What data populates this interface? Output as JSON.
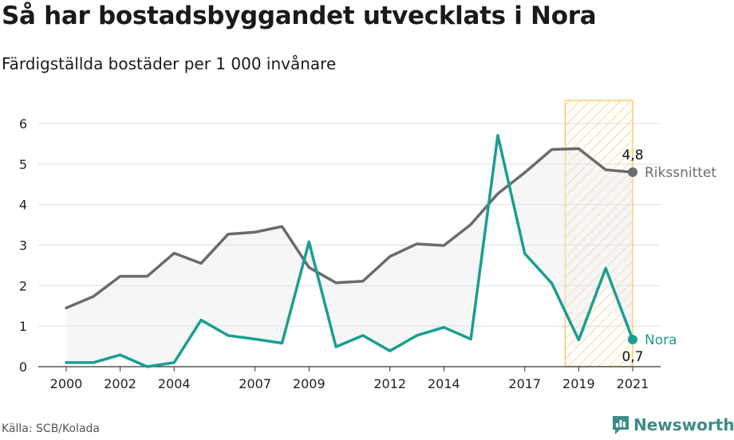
{
  "title": "Så har bostadsbyggandet utvecklats i Nora",
  "subtitle": "Färdigställda bostäder per 1 000 invånare",
  "source": "Källa: SCB/Kolada",
  "brand": "Newsworthy",
  "chart_data": {
    "type": "line",
    "x": [
      2000,
      2001,
      2002,
      2003,
      2004,
      2005,
      2006,
      2007,
      2008,
      2009,
      2010,
      2011,
      2012,
      2013,
      2014,
      2015,
      2016,
      2017,
      2018,
      2019,
      2020,
      2021
    ],
    "x_tick_labels": [
      "2000",
      "2002",
      "2004",
      "2007",
      "2009",
      "2012",
      "2014",
      "2017",
      "2019",
      "2021"
    ],
    "y_tick_labels": [
      "0",
      "1",
      "2",
      "3",
      "4",
      "5",
      "6"
    ],
    "ylim": [
      0,
      6
    ],
    "grid": true,
    "series": [
      {
        "name": "Rikssnittet",
        "color": "#6b6a6e",
        "values": [
          1.45,
          1.73,
          2.23,
          2.23,
          2.8,
          2.55,
          3.27,
          3.32,
          3.46,
          2.45,
          2.07,
          2.11,
          2.72,
          3.03,
          2.99,
          3.51,
          4.27,
          4.79,
          5.36,
          5.38,
          4.86,
          4.8
        ]
      },
      {
        "name": "Nora",
        "color": "#1a9e92",
        "values": [
          0.1,
          0.1,
          0.29,
          0.0,
          0.1,
          1.15,
          0.77,
          0.68,
          0.58,
          3.08,
          0.49,
          0.77,
          0.39,
          0.77,
          0.97,
          0.68,
          5.71,
          2.79,
          2.06,
          0.66,
          2.43,
          0.67
        ]
      }
    ],
    "end_labels": {
      "Rikssnittet": "4,8",
      "Nora": "0,7"
    },
    "highlight_range": [
      2018.5,
      2021
    ],
    "highlight_color": "#f5c242"
  }
}
